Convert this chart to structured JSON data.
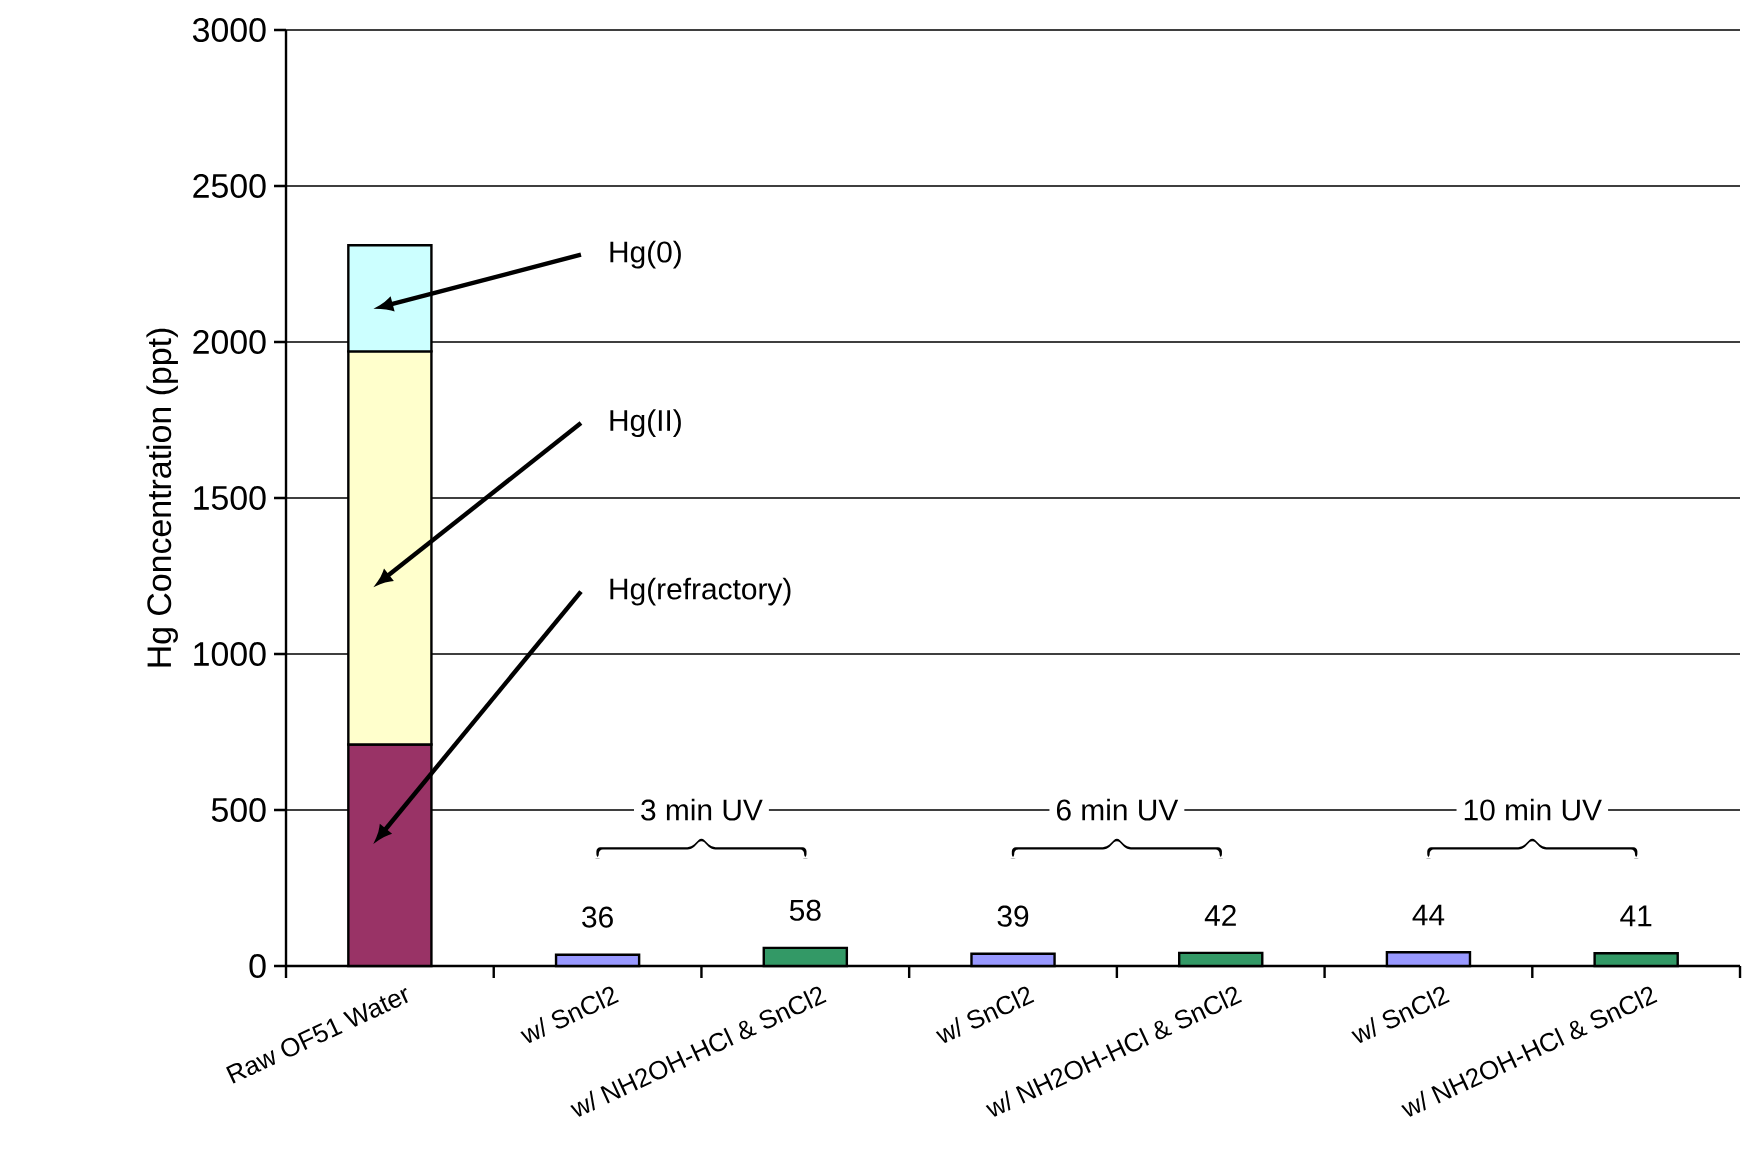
{
  "chart_data": {
    "type": "bar",
    "stacked": true,
    "ylabel": "Hg Concentration (ppt)",
    "categories": [
      "Raw OF51 Water",
      "w/ SnCl2",
      "w/ NH2OH-HCl & SnCl2",
      "w/ SnCl2",
      "w/ NH2OH-HCl & SnCl2",
      "w/ SnCl2",
      "w/ NH2OH-HCl & SnCl2"
    ],
    "series": [
      {
        "colors": [
          "#993366",
          "#9999ff",
          "#339966",
          "#9999ff",
          "#339966",
          "#9999ff",
          "#339966"
        ],
        "values": [
          710,
          36,
          58,
          39,
          42,
          44,
          41
        ],
        "value_labels": [
          null,
          "36",
          "58",
          "39",
          "42",
          "44",
          "41"
        ]
      },
      {
        "color": "#ffffcc",
        "values": [
          1260,
          null,
          null,
          null,
          null,
          null,
          null
        ]
      },
      {
        "color": "#ccffff",
        "values": [
          340,
          null,
          null,
          null,
          null,
          null,
          null
        ]
      }
    ],
    "ylim": [
      0,
      3000
    ],
    "yticks": [
      0,
      500,
      1000,
      1500,
      2000,
      2500,
      3000
    ],
    "grid": "y",
    "annotations": [
      "Hg(0)",
      "Hg(II)",
      "Hg(refractory)",
      "3 min UV",
      "6 min UV",
      "10 min UV"
    ]
  }
}
